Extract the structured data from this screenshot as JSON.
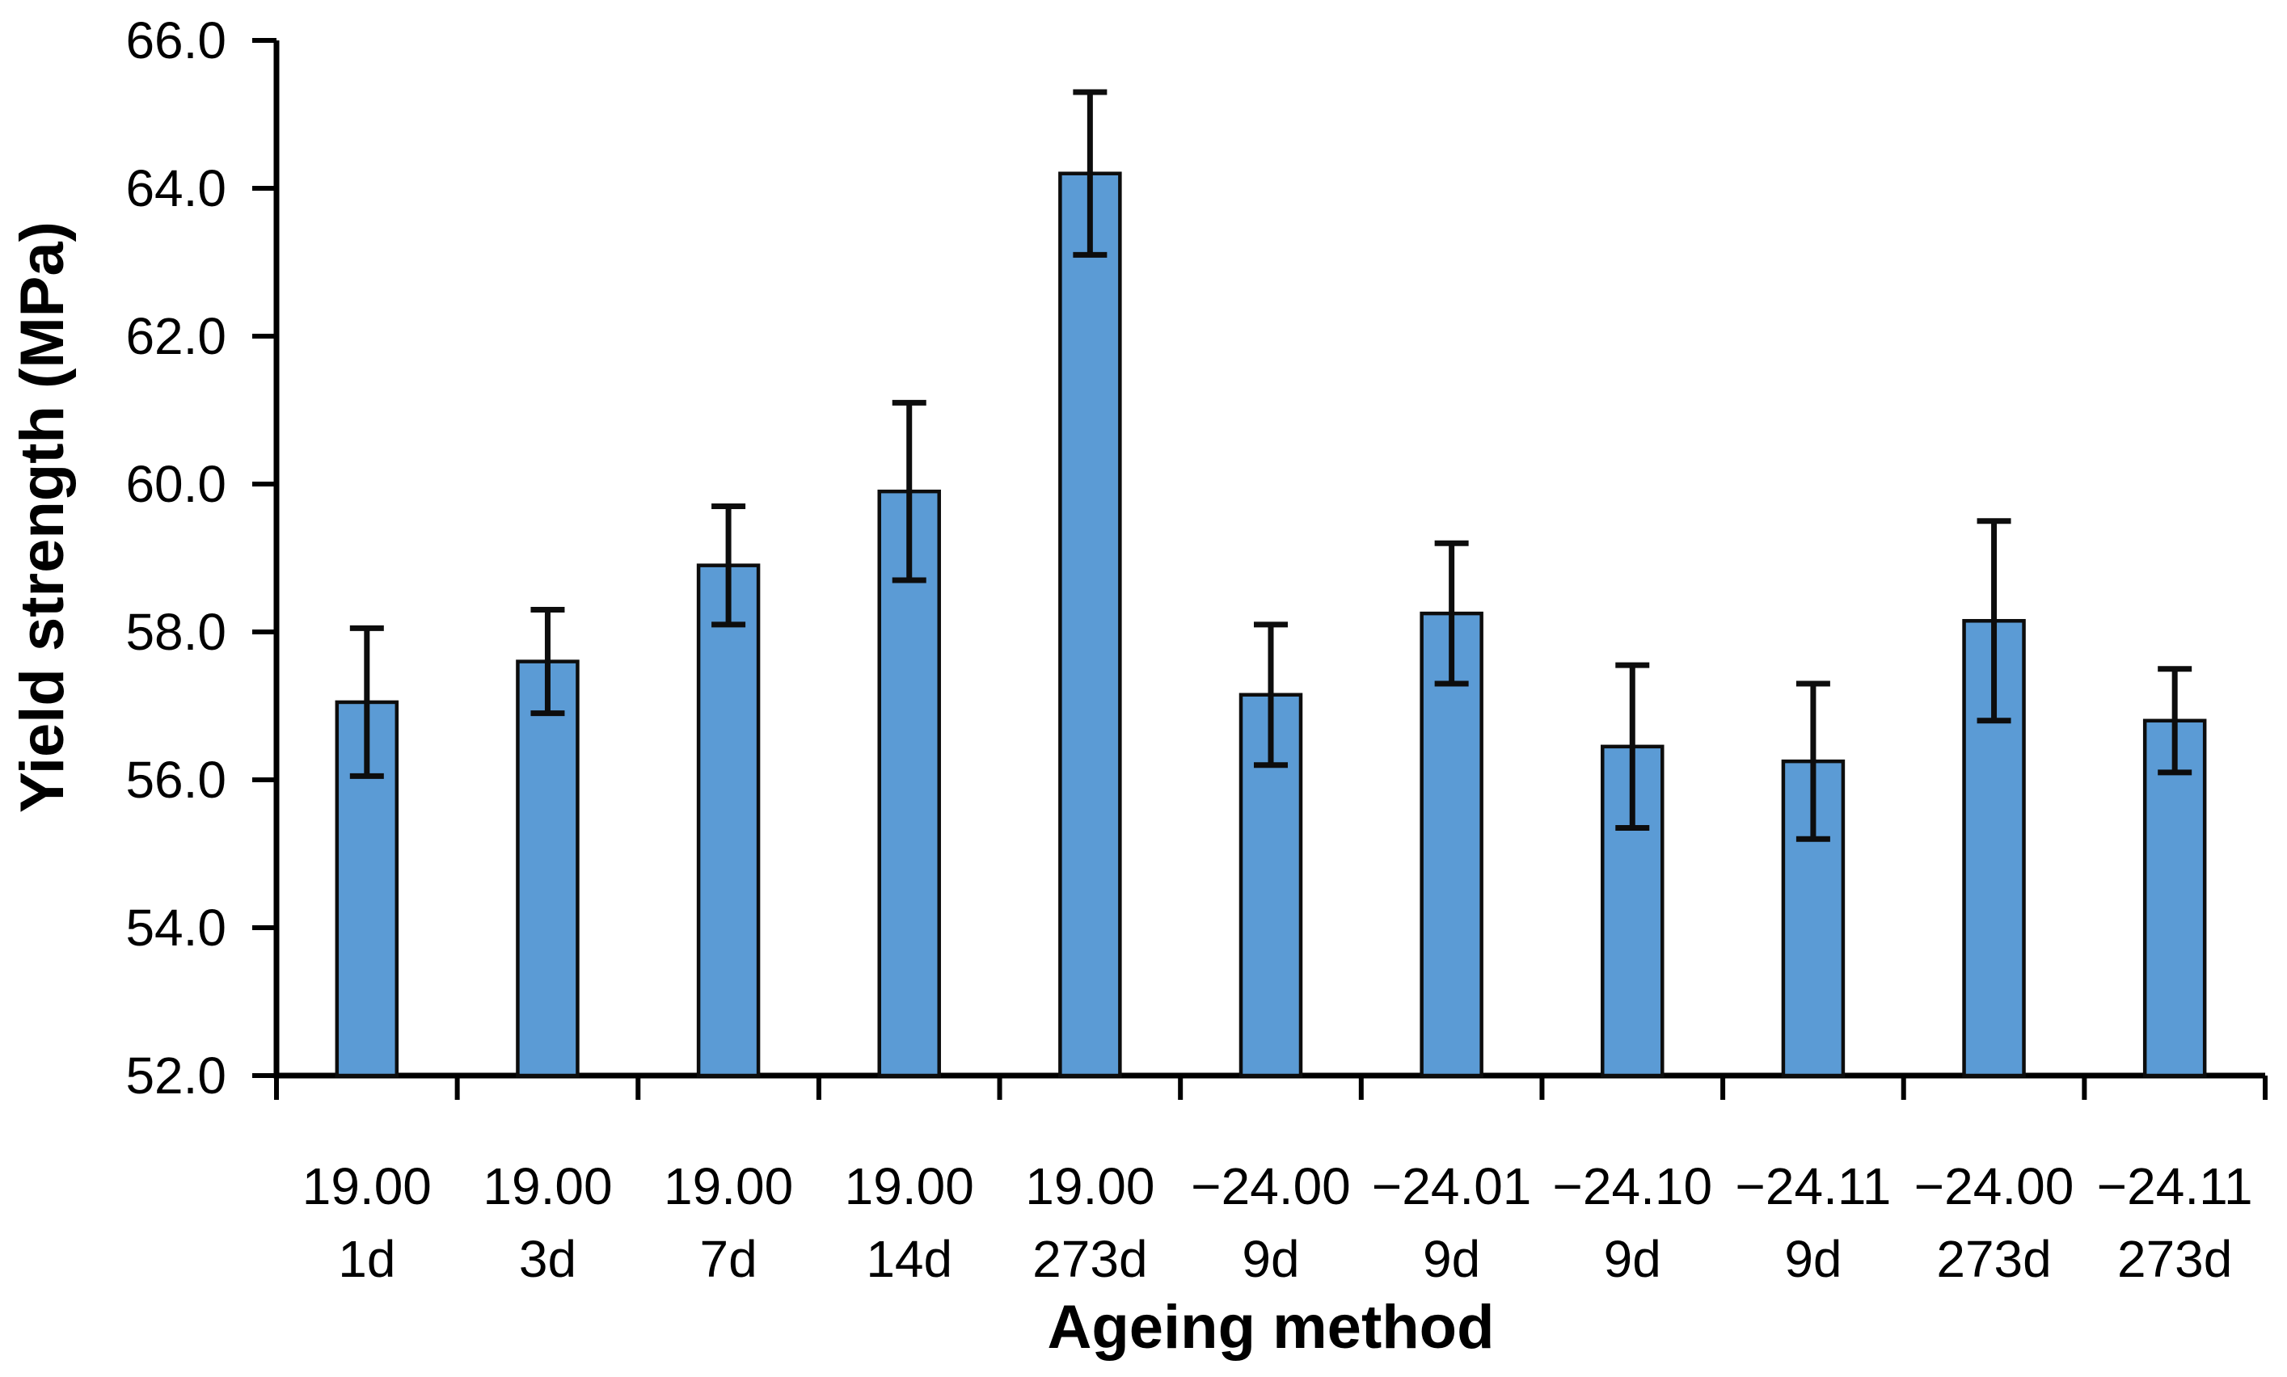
{
  "chart_data": {
    "type": "bar",
    "title": "",
    "xlabel": "Ageing method",
    "ylabel": "Yield strength (MPa)",
    "ylim": [
      52.0,
      66.0
    ],
    "ytick_labels": [
      "52.0",
      "54.0",
      "56.0",
      "58.0",
      "60.0",
      "62.0",
      "64.0",
      "66.0"
    ],
    "grid": false,
    "legend_position": "none",
    "bar_color": "#5B9BD5",
    "bar_edge_color": "#0d0d0d",
    "error_bar_color": "#0d0d0d",
    "axis_color": "#000000",
    "categories": [
      {
        "line1": "19.00",
        "line2": "1d"
      },
      {
        "line1": "19.00",
        "line2": "3d"
      },
      {
        "line1": "19.00",
        "line2": "7d"
      },
      {
        "line1": "19.00",
        "line2": "14d"
      },
      {
        "line1": "19.00",
        "line2": "273d"
      },
      {
        "line1": "−24.00",
        "line2": "9d"
      },
      {
        "line1": "−24.01",
        "line2": "9d"
      },
      {
        "line1": "−24.10",
        "line2": "9d"
      },
      {
        "line1": "−24.11",
        "line2": "9d"
      },
      {
        "line1": "−24.00",
        "line2": "273d"
      },
      {
        "line1": "−24.11",
        "line2": "273d"
      }
    ],
    "values": [
      57.05,
      57.6,
      58.9,
      59.9,
      64.2,
      57.15,
      58.25,
      56.45,
      56.25,
      58.15,
      56.8
    ],
    "error_plus": [
      1.0,
      0.7,
      0.8,
      1.2,
      1.1,
      0.95,
      0.95,
      1.1,
      1.05,
      1.35,
      0.7
    ],
    "error_minus": [
      1.0,
      0.7,
      0.8,
      1.2,
      1.1,
      0.95,
      0.95,
      1.1,
      1.05,
      1.35,
      0.7
    ]
  }
}
